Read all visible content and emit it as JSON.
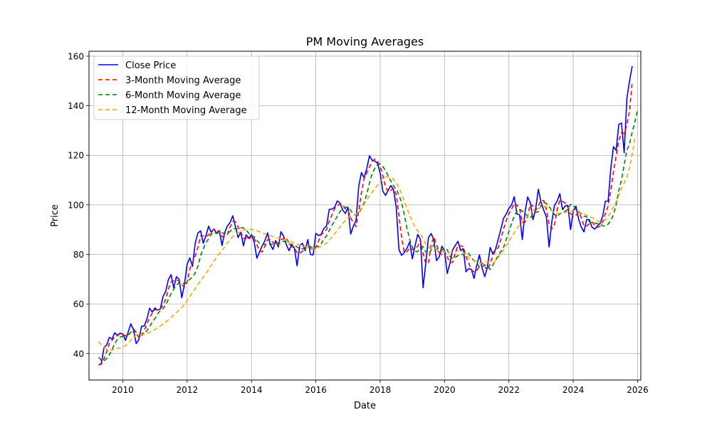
{
  "chart_data": {
    "type": "line",
    "title": "PM Moving Averages",
    "xlabel": "Date",
    "ylabel": "Price",
    "xlim": [
      2008.95,
      2026.1
    ],
    "ylim": [
      29.3,
      162.0
    ],
    "x_ticks": [
      2010,
      2012,
      2014,
      2016,
      2018,
      2020,
      2022,
      2024,
      2026
    ],
    "y_ticks": [
      40,
      60,
      80,
      100,
      120,
      140,
      160
    ],
    "grid": true,
    "legend_position": "top-left",
    "x_start": 2009.25,
    "x_step": 0.08333333,
    "series": [
      {
        "name": "Close Price",
        "color": "#0000ff",
        "dash": "solid",
        "values": [
          35.4,
          36.0,
          42.5,
          43.5,
          46.5,
          45.8,
          48.4,
          47.4,
          48.2,
          47.8,
          45.3,
          48.6,
          52.0,
          49.5,
          44.0,
          45.6,
          51.0,
          51.1,
          54.0,
          58.3,
          56.7,
          58.4,
          57.5,
          58.0,
          63.0,
          65.1,
          69.8,
          71.8,
          66.5,
          71.0,
          70.0,
          62.5,
          68.0,
          76.0,
          78.6,
          75.2,
          84.5,
          88.6,
          89.5,
          84.5,
          87.5,
          91.4,
          88.9,
          90.3,
          88.5,
          89.6,
          83.6,
          88.8,
          91.5,
          92.8,
          95.6,
          91.3,
          86.8,
          89.0,
          83.5,
          87.9,
          86.5,
          88.0,
          85.0,
          78.5,
          81.0,
          83.5,
          85.5,
          88.7,
          84.0,
          82.0,
          85.6,
          83.0,
          89.2,
          87.3,
          83.9,
          81.5,
          84.0,
          82.5,
          75.4,
          83.6,
          84.5,
          81.5,
          86.0,
          80.0,
          79.8,
          88.5,
          87.6,
          88.2,
          90.5,
          91.5,
          98.2,
          98.3,
          99.0,
          101.6,
          100.7,
          98.0,
          96.5,
          99.0,
          88.2,
          91.5,
          93.8,
          107.5,
          113.0,
          111.0,
          114.7,
          119.8,
          118.0,
          117.7,
          116.8,
          112.7,
          105.5,
          103.8,
          106.0,
          107.8,
          106.0,
          98.8,
          81.9,
          79.6,
          80.8,
          82.5,
          85.0,
          78.2,
          83.5,
          88.1,
          86.0,
          66.6,
          76.4,
          86.8,
          88.4,
          86.0,
          77.5,
          79.0,
          83.3,
          81.5,
          72.3,
          76.4,
          81.8,
          83.6,
          85.3,
          81.6,
          82.3,
          73.0,
          74.3,
          74.0,
          70.3,
          75.5,
          79.8,
          74.5,
          71.0,
          74.9,
          82.8,
          80.2,
          82.0,
          86.0,
          90.2,
          94.5,
          96.3,
          98.6,
          100.0,
          103.3,
          96.3,
          96.0,
          86.0,
          97.0,
          103.2,
          100.9,
          94.0,
          98.5,
          106.3,
          101.0,
          97.8,
          95.0,
          83.0,
          93.0,
          99.8,
          101.5,
          104.5,
          98.1,
          99.5,
          99.8,
          90.0,
          97.5,
          99.5,
          94.3,
          91.0,
          89.1,
          94.1,
          94.0,
          91.0,
          90.2,
          91.5,
          92.5,
          95.5,
          101.5,
          101.5,
          114.5,
          123.5,
          122.0,
          132.5,
          133.0,
          121.0,
          143.0,
          150.0,
          156.0
        ]
      },
      {
        "name": "3-Month Moving Average",
        "color": "#ff0000",
        "dash": "6,4",
        "values": [
          35.4,
          35.7,
          38.0,
          40.7,
          44.2,
          45.3,
          46.9,
          47.2,
          48.0,
          47.8,
          47.1,
          47.2,
          48.6,
          50.0,
          48.5,
          46.4,
          46.9,
          49.2,
          52.0,
          54.5,
          56.3,
          57.8,
          57.5,
          58.0,
          59.5,
          62.0,
          66.0,
          68.9,
          69.4,
          69.8,
          69.2,
          67.8,
          66.8,
          68.8,
          74.2,
          76.6,
          79.4,
          82.8,
          87.5,
          87.5,
          87.2,
          87.8,
          89.3,
          90.2,
          89.2,
          89.5,
          87.2,
          87.3,
          88.0,
          91.0,
          93.3,
          93.2,
          91.2,
          89.0,
          86.4,
          86.8,
          86.0,
          87.5,
          86.5,
          83.8,
          81.5,
          81.0,
          83.3,
          85.9,
          86.1,
          84.9,
          83.9,
          83.5,
          85.9,
          86.5,
          86.8,
          84.2,
          83.1,
          82.7,
          80.6,
          80.5,
          81.2,
          83.2,
          84.0,
          82.5,
          81.9,
          82.8,
          85.3,
          88.1,
          88.8,
          90.1,
          93.4,
          96.0,
          98.5,
          99.6,
          100.4,
          100.1,
          98.4,
          97.8,
          94.6,
          92.9,
          91.2,
          97.6,
          104.8,
          110.5,
          112.9,
          115.2,
          117.5,
          118.5,
          117.5,
          115.7,
          111.7,
          107.3,
          105.1,
          105.9,
          106.6,
          104.2,
          95.6,
          86.8,
          80.8,
          81.0,
          82.8,
          81.9,
          82.2,
          83.3,
          85.9,
          80.2,
          76.3,
          76.6,
          83.9,
          87.1,
          84.0,
          80.8,
          79.9,
          81.3,
          79.0,
          76.7,
          76.8,
          80.6,
          83.6,
          83.5,
          83.1,
          79.0,
          76.5,
          73.8,
          72.9,
          73.3,
          75.2,
          76.6,
          75.1,
          73.5,
          76.2,
          79.3,
          81.7,
          82.7,
          86.1,
          90.2,
          93.7,
          96.5,
          98.3,
          100.6,
          99.9,
          98.5,
          92.8,
          93.0,
          95.4,
          100.4,
          99.4,
          97.8,
          99.6,
          101.9,
          101.7,
          98.0,
          92.0,
          90.3,
          91.9,
          98.1,
          101.9,
          101.4,
          100.7,
          99.1,
          96.4,
          95.8,
          95.7,
          97.1,
          94.9,
          91.5,
          91.4,
          92.4,
          93.1,
          91.8,
          90.9,
          91.4,
          93.2,
          96.5,
          99.5,
          105.8,
          113.2,
          119.8,
          126.0,
          129.2,
          128.8,
          132.3,
          138.0,
          149.7
        ]
      },
      {
        "name": "6-Month Moving Average",
        "color": "#008000",
        "dash": "6,4",
        "values": [
          38.5,
          37.2,
          37.0,
          38.0,
          39.5,
          41.6,
          44.1,
          45.7,
          46.6,
          47.0,
          47.3,
          47.6,
          48.4,
          48.9,
          48.6,
          47.9,
          48.0,
          48.2,
          49.2,
          50.8,
          52.7,
          54.1,
          56.0,
          57.3,
          58.1,
          59.6,
          61.8,
          64.1,
          66.0,
          67.5,
          68.7,
          68.6,
          68.1,
          69.0,
          70.0,
          70.8,
          72.5,
          75.2,
          79.5,
          82.2,
          84.8,
          86.2,
          88.2,
          89.0,
          88.4,
          88.9,
          88.6,
          88.6,
          88.6,
          89.2,
          90.5,
          90.4,
          90.3,
          90.8,
          90.7,
          89.9,
          88.5,
          87.6,
          87.1,
          85.7,
          84.5,
          84.0,
          84.0,
          84.5,
          84.1,
          84.1,
          84.1,
          84.7,
          85.4,
          85.2,
          85.0,
          84.2,
          84.1,
          83.7,
          83.0,
          82.2,
          82.3,
          82.2,
          82.7,
          83.1,
          82.7,
          83.2,
          83.2,
          84.2,
          86.3,
          87.5,
          89.6,
          91.7,
          93.5,
          95.4,
          97.3,
          98.3,
          99.0,
          99.1,
          97.8,
          96.1,
          95.9,
          96.6,
          98.4,
          100.9,
          104.3,
          108.8,
          112.6,
          114.8,
          116.2,
          116.5,
          115.5,
          113.8,
          111.6,
          109.5,
          107.6,
          106.4,
          104.0,
          100.9,
          95.9,
          90.6,
          86.0,
          82.9,
          81.2,
          81.1,
          82.9,
          83.1,
          81.0,
          80.1,
          81.7,
          84.0,
          82.3,
          80.8,
          81.7,
          82.6,
          81.9,
          79.2,
          78.3,
          78.8,
          79.5,
          80.0,
          79.9,
          80.7,
          80.4,
          78.6,
          77.5,
          76.5,
          75.0,
          74.9,
          75.8,
          75.2,
          73.9,
          75.7,
          77.5,
          79.5,
          81.2,
          82.8,
          86.0,
          89.2,
          92.6,
          95.3,
          97.5,
          98.2,
          97.5,
          96.6,
          95.3,
          94.6,
          96.5,
          97.0,
          97.2,
          99.7,
          100.9,
          100.6,
          99.4,
          97.7,
          96.1,
          95.3,
          96.4,
          96.9,
          97.4,
          98.3,
          100.2,
          100.0,
          98.1,
          97.5,
          96.3,
          95.4,
          95.2,
          93.2,
          92.5,
          92.7,
          92.4,
          92.4,
          91.6,
          91.4,
          92.2,
          93.7,
          96.0,
          100.0,
          105.9,
          110.0,
          116.1,
          122.1,
          124.6,
          129.4,
          133.5,
          138.5
        ]
      },
      {
        "name": "12-Month Moving Average",
        "color": "#ffa500",
        "dash": "6,4",
        "values": [
          44.8,
          43.4,
          42.5,
          41.8,
          41.6,
          41.4,
          41.8,
          42.1,
          42.3,
          42.6,
          43.2,
          44.0,
          45.5,
          46.6,
          47.4,
          47.6,
          47.8,
          47.8,
          48.1,
          48.5,
          49.1,
          49.7,
          50.5,
          51.1,
          51.9,
          52.7,
          53.6,
          54.6,
          55.5,
          56.5,
          57.6,
          58.6,
          59.9,
          61.5,
          63.1,
          64.6,
          66.2,
          67.8,
          69.4,
          70.8,
          72.3,
          73.9,
          75.6,
          77.3,
          78.8,
          80.3,
          81.6,
          83.1,
          84.6,
          86.0,
          87.2,
          88.0,
          88.7,
          89.3,
          89.8,
          90.1,
          90.2,
          90.1,
          89.8,
          89.5,
          89.1,
          88.7,
          88.3,
          87.9,
          87.6,
          87.2,
          86.8,
          86.5,
          86.3,
          86.0,
          85.8,
          85.4,
          85.0,
          84.6,
          84.2,
          83.7,
          83.4,
          83.1,
          82.8,
          82.6,
          82.5,
          82.6,
          82.8,
          83.2,
          83.8,
          84.7,
          85.7,
          87.0,
          88.3,
          89.7,
          91.1,
          92.5,
          93.7,
          94.8,
          95.3,
          95.7,
          96.1,
          97.1,
          98.6,
          100.3,
          102.0,
          103.7,
          105.2,
          106.5,
          108.0,
          109.5,
          110.5,
          111.2,
          111.3,
          111.1,
          110.2,
          108.9,
          107.0,
          104.3,
          101.5,
          98.6,
          95.8,
          93.2,
          91.0,
          89.4,
          88.2,
          86.3,
          84.2,
          82.9,
          82.9,
          82.6,
          81.9,
          81.3,
          81.1,
          81.0,
          80.8,
          80.6,
          80.7,
          81.0,
          81.6,
          81.6,
          80.8,
          79.8,
          78.7,
          77.8,
          77.5,
          77.2,
          76.5,
          76.5,
          76.8,
          77.0,
          76.8,
          76.3,
          77.5,
          78.7,
          80.2,
          81.8,
          83.5,
          85.2,
          87.1,
          88.8,
          90.5,
          92.0,
          93.2,
          94.2,
          95.6,
          96.8,
          97.7,
          98.1,
          98.6,
          98.9,
          99.1,
          99.0,
          98.4,
          97.7,
          97.0,
          96.6,
          96.6,
          96.8,
          97.0,
          97.3,
          97.5,
          97.6,
          97.6,
          97.2,
          96.8,
          96.3,
          95.8,
          95.3,
          94.8,
          94.2,
          93.5,
          93.2,
          93.3,
          94.0,
          95.3,
          97.0,
          99.1,
          101.3,
          103.8,
          106.8,
          108.9,
          111.2,
          115.0,
          120.5,
          127.0
        ]
      }
    ]
  }
}
